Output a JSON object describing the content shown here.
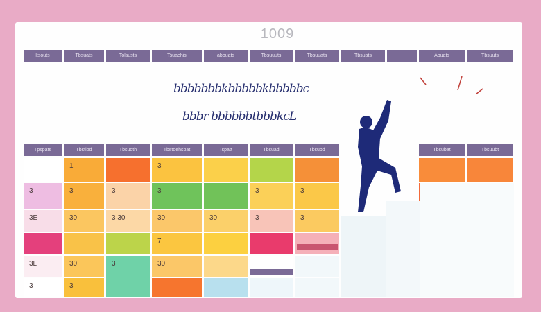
{
  "title": "1009",
  "colors": {
    "background": "#e9abc6",
    "header": "#7a6a96",
    "figure": "#1e2a78"
  },
  "top_headers": [
    "ltsouts",
    "Tbsuats",
    "Tolsusts",
    "Tsuaehis",
    "abouats",
    "Tbsuuuts",
    "Tbsuuats",
    "Tbsuats",
    "",
    "Abuats",
    "Tbsuuts"
  ],
  "headline": [
    "bbbbbbbkbbbbbkbbbbbc",
    "bbbr bbbbbbtbbbkcL"
  ],
  "grid_headers": [
    "Tpspats",
    "Tbstlod",
    "Tbsuoth",
    "Tbstoehsbat",
    "Tspatt",
    "Tbsuad",
    "Tbsubd",
    "Tbsubat",
    "Tbsuubt"
  ],
  "grid": {
    "columns": [
      {
        "cells": [
          {
            "v": "",
            "c": "#ffffff"
          },
          {
            "v": "3",
            "c": "#eebde2"
          },
          {
            "v": "3E",
            "c": "#f8dde8"
          },
          {
            "v": "",
            "c": "#e4407c"
          },
          {
            "v": "3L",
            "c": "#fbedf2"
          },
          {
            "v": "3",
            "c": "#ffffff"
          }
        ]
      },
      {
        "cells": [
          {
            "v": "1",
            "c": "#f9ab38"
          },
          {
            "v": "3",
            "c": "#f9b03c"
          },
          {
            "v": "30",
            "c": "#fbc660"
          },
          {
            "v": "",
            "c": "#f9c248"
          },
          {
            "v": "30",
            "c": "#fbc65a"
          },
          {
            "v": "3",
            "c": "#f9c03c"
          }
        ]
      },
      {
        "cells": [
          {
            "v": "",
            "c": "#f6702e"
          },
          {
            "v": "3",
            "c": "#fbd3a8"
          },
          {
            "v": "3  30",
            "c": "#fcd8a6"
          },
          {
            "v": "",
            "c": "#bcd44a"
          },
          {
            "v": "3",
            "c": "#6fd2a8"
          }
        ]
      },
      {
        "cells": [
          {
            "v": "3",
            "c": "#fbc340"
          },
          {
            "v": "3",
            "c": "#6fc35b"
          },
          {
            "v": "30",
            "c": "#fbc76a"
          },
          {
            "v": "7",
            "c": "#fbc640"
          },
          {
            "v": "30",
            "c": "#fbc768"
          },
          {
            "v": "",
            "c": "#f6752e"
          }
        ]
      },
      {
        "cells": [
          {
            "v": "",
            "c": "#fbd04a"
          },
          {
            "v": "",
            "c": "#71c259"
          },
          {
            "v": "30",
            "c": "#fbd06a"
          },
          {
            "v": "",
            "c": "#fcd040"
          },
          {
            "v": "",
            "c": "#fcd88a"
          },
          {
            "v": "",
            "c": "#b8e0ee"
          }
        ]
      },
      {
        "cells": [
          {
            "v": "",
            "c": "#b4d54a"
          },
          {
            "v": "3",
            "c": "#fbd058"
          },
          {
            "v": "3",
            "c": "#f8c4b8"
          },
          {
            "v": "",
            "c": "#e93b6c"
          },
          {
            "v": "",
            "c": "#ffffff"
          },
          {
            "v": "",
            "c": "#eef6fa"
          }
        ]
      },
      {
        "cells": [
          {
            "v": "",
            "c": "#f59038"
          },
          {
            "v": "3",
            "c": "#fbc848"
          },
          {
            "v": "3",
            "c": "#fbca60"
          },
          {
            "v": "",
            "c": "#f5b0b8"
          },
          {
            "v": "",
            "c": "#f2f8fa"
          },
          {
            "v": "",
            "c": "#f2f8fa"
          }
        ]
      }
    ],
    "right_columns": [
      {
        "cells": [
          {
            "v": "",
            "c": "#f98c3a"
          },
          {
            "v": "",
            "c": "#f36a3a"
          }
        ]
      },
      {
        "cells": [
          {
            "v": "",
            "c": "#f8863a"
          }
        ]
      }
    ]
  }
}
